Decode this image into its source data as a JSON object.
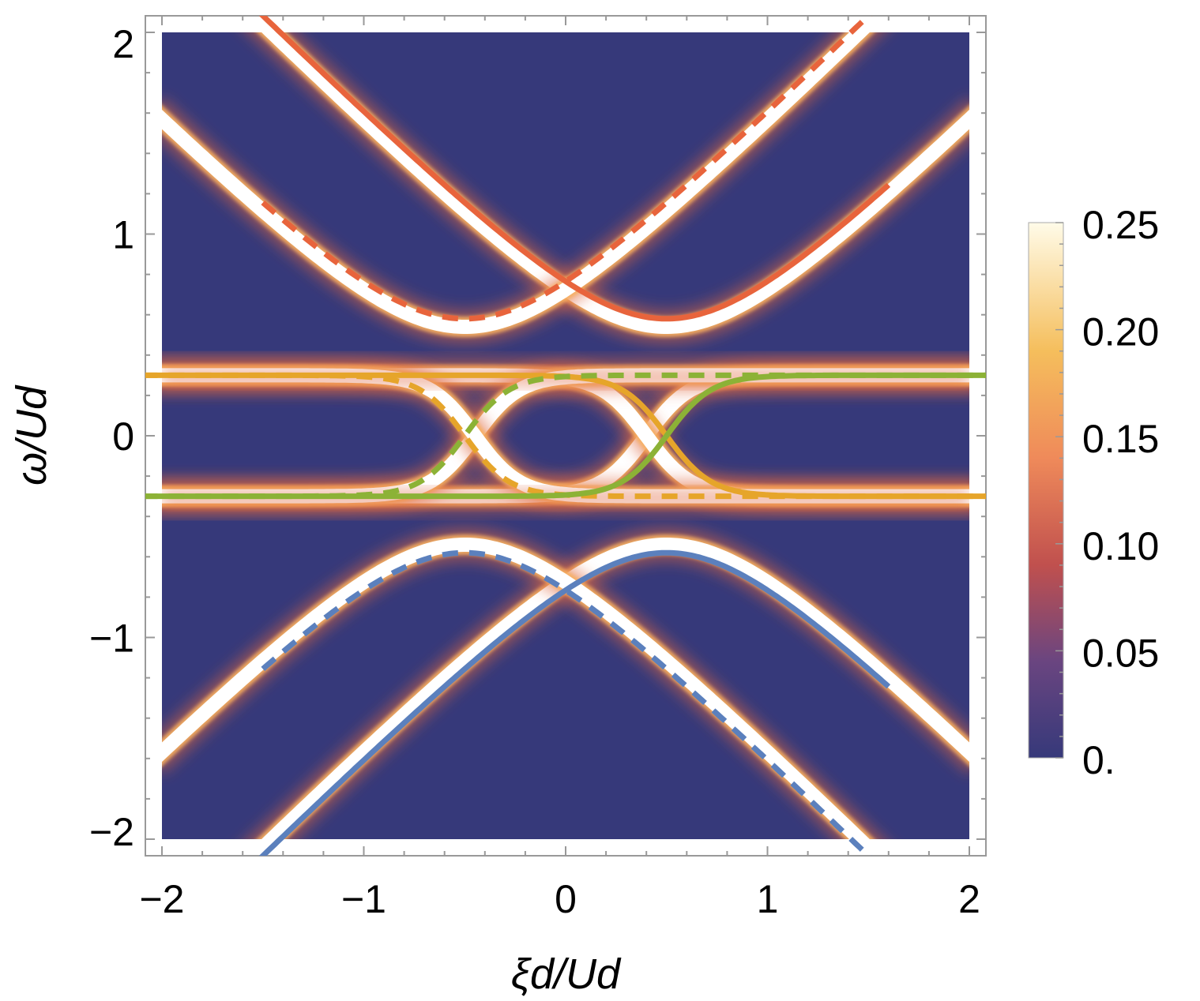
{
  "chart_data": {
    "type": "heatmap",
    "title": "",
    "xlabel": "ξd/Ud",
    "ylabel": "ω/Ud",
    "xlim": [
      -2.08,
      2.08
    ],
    "ylim": [
      -2.08,
      2.08
    ],
    "data_extent": {
      "x": [
        -2,
        2
      ],
      "y": [
        -2,
        2
      ]
    },
    "x_ticks": [
      {
        "value": -2,
        "label": "−2"
      },
      {
        "value": -1,
        "label": "−1"
      },
      {
        "value": 0,
        "label": "0"
      },
      {
        "value": 1,
        "label": "1"
      },
      {
        "value": 2,
        "label": "2"
      }
    ],
    "y_ticks": [
      {
        "value": -2,
        "label": "−2"
      },
      {
        "value": -1,
        "label": "−1"
      },
      {
        "value": 0,
        "label": "0"
      },
      {
        "value": 1,
        "label": "1"
      },
      {
        "value": 2,
        "label": "2"
      }
    ],
    "colorbar": {
      "min": 0,
      "max": 0.25,
      "ticks": [
        {
          "value": 0,
          "label": "0."
        },
        {
          "value": 0.05,
          "label": "0.05"
        },
        {
          "value": 0.1,
          "label": "0.10"
        },
        {
          "value": 0.15,
          "label": "0.15"
        },
        {
          "value": 0.2,
          "label": "0.20"
        },
        {
          "value": 0.25,
          "label": "0.25"
        }
      ]
    },
    "colors": {
      "background": "#36397a",
      "orange": "#e8643c",
      "yellow": "#e6a52a",
      "green": "#8cb236",
      "blue": "#5b80bd",
      "peak": "#ffffff"
    },
    "model": {
      "delta": 0.5,
      "t": 0.3,
      "E": 0.3,
      "coupling": 0.2
    },
    "series": [
      {
        "name": "upper band (solid)",
        "style": "solid",
        "color": "orange",
        "shift": -0.5,
        "branch": "upper",
        "x_range": [
          -2.1,
          1.6
        ]
      },
      {
        "name": "upper band (dashed)",
        "style": "dashed",
        "color": "orange",
        "shift": 0.5,
        "branch": "upper",
        "x_range": [
          -1.5,
          2.1
        ]
      },
      {
        "name": "lower band (solid)",
        "style": "solid",
        "color": "blue",
        "shift": -0.5,
        "branch": "lower",
        "x_range": [
          -2.1,
          1.6
        ]
      },
      {
        "name": "lower band (dashed)",
        "style": "dashed",
        "color": "blue",
        "shift": 0.5,
        "branch": "lower",
        "x_range": [
          -1.5,
          2.1
        ]
      },
      {
        "name": "inner decreasing (solid)",
        "style": "solid",
        "color": "yellow",
        "shift": -0.5,
        "branch": "dec",
        "x_range": [
          -2.1,
          2.1
        ]
      },
      {
        "name": "inner decreasing (dashed)",
        "style": "dashed",
        "color": "yellow",
        "shift": 0.5,
        "branch": "dec",
        "x_range": [
          -2.1,
          2.1
        ]
      },
      {
        "name": "inner increasing (solid)",
        "style": "solid",
        "color": "green",
        "shift": -0.5,
        "branch": "inc",
        "x_range": [
          -2.1,
          2.1
        ]
      },
      {
        "name": "inner increasing (dashed)",
        "style": "dashed",
        "color": "green",
        "shift": 0.5,
        "branch": "inc",
        "x_range": [
          -2.1,
          2.1
        ]
      }
    ]
  }
}
